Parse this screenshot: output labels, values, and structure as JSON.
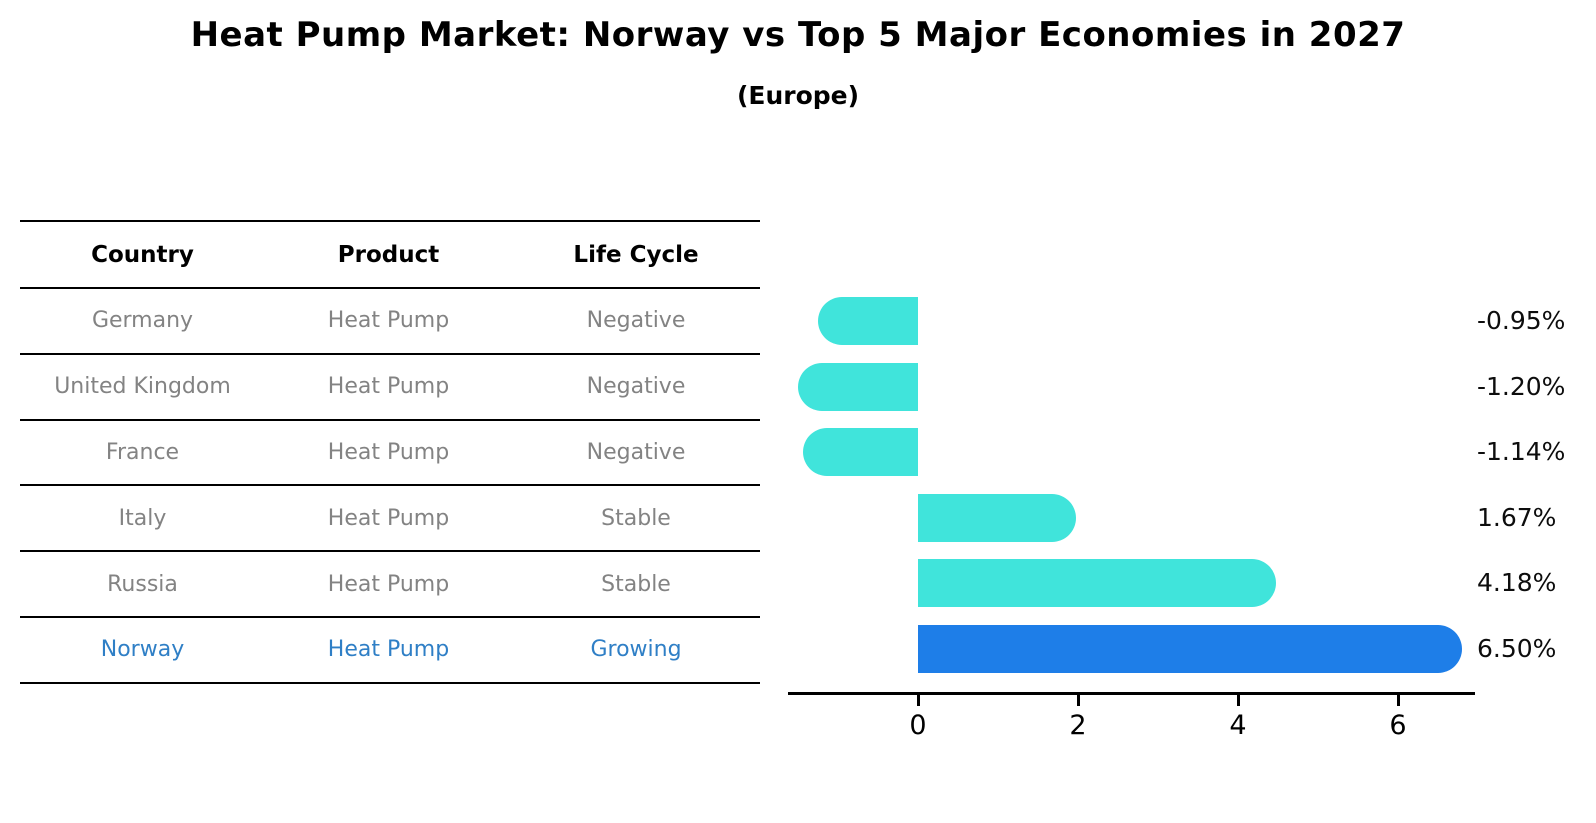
{
  "header": {
    "title": "Heat Pump Market: Norway vs Top 5 Major Economies in 2027",
    "subtitle": "(Europe)"
  },
  "table": {
    "columns": [
      "Country",
      "Product",
      "Life Cycle"
    ],
    "rows": [
      {
        "country": "Germany",
        "product": "Heat Pump",
        "life_cycle": "Negative",
        "highlight": false
      },
      {
        "country": "United Kingdom",
        "product": "Heat Pump",
        "life_cycle": "Negative",
        "highlight": false
      },
      {
        "country": "France",
        "product": "Heat Pump",
        "life_cycle": "Negative",
        "highlight": false
      },
      {
        "country": "Italy",
        "product": "Heat Pump",
        "life_cycle": "Stable",
        "highlight": false
      },
      {
        "country": "Russia",
        "product": "Heat Pump",
        "life_cycle": "Stable",
        "highlight": false
      },
      {
        "country": "Norway",
        "product": "Heat Pump",
        "life_cycle": "Growing",
        "highlight": true
      }
    ]
  },
  "chart_data": {
    "type": "bar",
    "orientation": "horizontal",
    "title": "Heat Pump Market: Norway vs Top 5 Major Economies in 2027 (Europe)",
    "categories": [
      "Germany",
      "United Kingdom",
      "France",
      "Italy",
      "Russia",
      "Norway"
    ],
    "values": [
      -0.95,
      -1.2,
      -1.14,
      1.67,
      4.18,
      6.5
    ],
    "value_labels": [
      "-0.95%",
      "-1.20%",
      "-1.14%",
      "1.67%",
      "4.18%",
      "6.50%"
    ],
    "x_ticks": [
      0,
      2,
      4,
      6
    ],
    "x_tick_labels": [
      "0",
      "2",
      "4",
      "6"
    ],
    "xlim": [
      -1.65,
      6.95
    ],
    "grid": false,
    "legend": null,
    "bar_color": "#40e4db",
    "highlight_color": "#1e7ee8",
    "highlight_index": 5
  },
  "colors": {
    "table_text_muted": "#838383",
    "table_text_highlight": "#2f7fc6",
    "axis_line": "#000000",
    "value_label_text": "#0d0d0d"
  }
}
